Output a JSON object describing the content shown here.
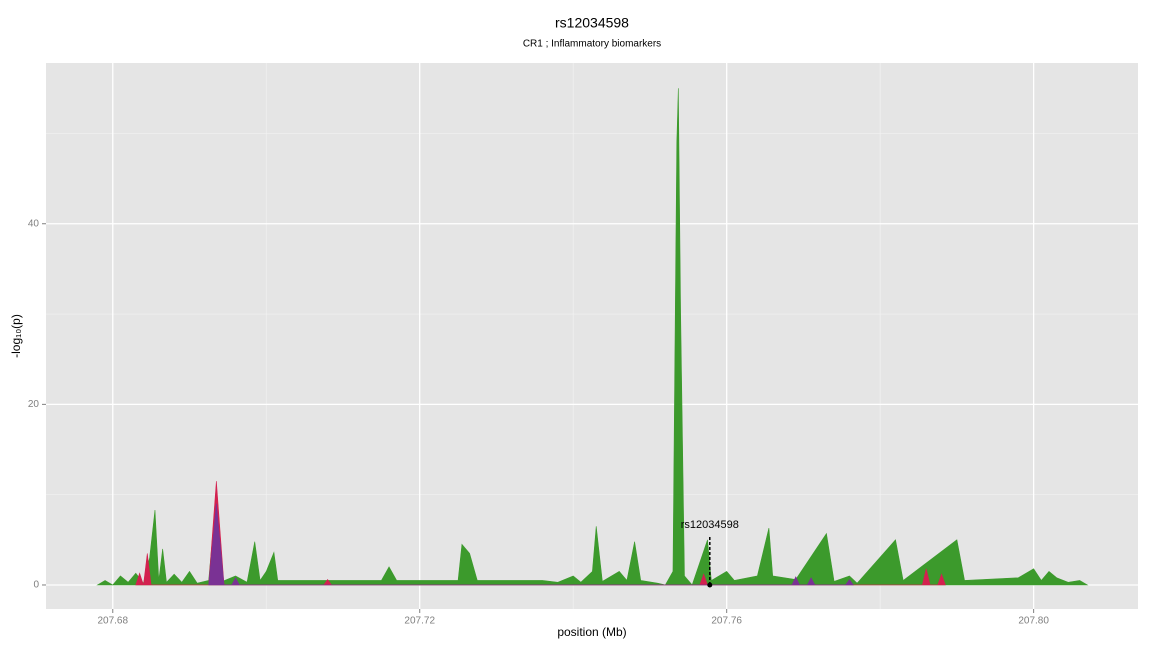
{
  "chart_data": {
    "type": "area",
    "title": "rs12034598",
    "subtitle": "CR1 ; Inflammatory biomarkers",
    "xlabel": "position (Mb)",
    "ylabel": "-log₁₀(p)",
    "xlim": [
      207.6713,
      207.8136
    ],
    "ylim": [
      -2.66,
      57.8
    ],
    "xticks": [
      207.68,
      207.72,
      207.76,
      {
        "value": 207.8,
        "label": "207.80"
      }
    ],
    "yticks": [
      0,
      20,
      40
    ],
    "x_minor_ticks": [
      207.7,
      207.74,
      207.78
    ],
    "y_minor_ticks": [
      10,
      30,
      50
    ],
    "grid": true,
    "series": [
      {
        "name": "green",
        "color": "#3c9a2c",
        "x": [
          207.678,
          207.679,
          207.68,
          207.681,
          207.682,
          207.683,
          207.684,
          207.6848,
          207.6855,
          207.686,
          207.6865,
          207.687,
          207.688,
          207.689,
          207.69,
          207.691,
          207.6925,
          207.6935,
          207.694,
          207.696,
          207.6975,
          207.6985,
          207.6992,
          207.7,
          207.701,
          207.7015,
          207.708,
          207.715,
          207.716,
          207.717,
          207.725,
          207.7255,
          207.7265,
          207.7275,
          207.73,
          207.736,
          207.738,
          207.74,
          207.741,
          207.7425,
          207.743,
          207.7438,
          207.746,
          207.747,
          207.748,
          207.7488,
          207.751,
          207.752,
          207.753,
          207.7535,
          207.7537,
          207.754,
          207.7545,
          207.7555,
          207.7575,
          207.758,
          207.76,
          207.761,
          207.764,
          207.7655,
          207.766,
          207.769,
          207.773,
          207.774,
          207.776,
          207.777,
          207.782,
          207.783,
          207.79,
          207.791,
          207.798,
          207.8,
          207.801,
          207.802,
          207.803,
          207.8045,
          207.806,
          207.807
        ],
        "values": [
          0,
          0.5,
          0,
          1.0,
          0.3,
          1.3,
          0.2,
          3,
          8.3,
          0.5,
          4,
          0.3,
          1.2,
          0.3,
          1.5,
          0.2,
          0.5,
          10,
          0.3,
          1,
          0.3,
          4.8,
          0.5,
          1.5,
          3.6,
          0.5,
          0.5,
          0.5,
          2,
          0.5,
          0.5,
          4.5,
          3.5,
          0.5,
          0.5,
          0.5,
          0.3,
          1,
          0.3,
          1.5,
          6.5,
          0.4,
          1.5,
          0.5,
          4.8,
          0.5,
          0.2,
          0,
          1.5,
          49,
          55,
          30,
          1,
          0,
          5,
          0.5,
          1.5,
          0.5,
          1,
          6.3,
          1,
          0.6,
          5.7,
          0.4,
          1,
          0.2,
          5,
          0.5,
          5,
          0.5,
          0.8,
          1.8,
          0.5,
          1.5,
          0.8,
          0.3,
          0.5,
          0
        ]
      },
      {
        "name": "red",
        "color": "#d3214f",
        "x": [
          207.683,
          207.6835,
          207.684,
          207.6845,
          207.685,
          207.6925,
          207.6935,
          207.6945,
          207.7075,
          207.708,
          207.7085,
          207.7565,
          207.757,
          207.7575,
          207.7855,
          207.786,
          207.7865,
          207.7875,
          207.788,
          207.7885
        ],
        "values": [
          0,
          1.3,
          0,
          3.5,
          0,
          0,
          11.5,
          0,
          0,
          0.6,
          0,
          0,
          1.2,
          0,
          0,
          1.8,
          0,
          0,
          1.2,
          0
        ]
      },
      {
        "name": "purple",
        "color": "#7a3294",
        "x": [
          207.6925,
          207.6935,
          207.6945,
          207.6955,
          207.696,
          207.6965,
          207.7685,
          207.769,
          207.7695,
          207.7705,
          207.771,
          207.7715,
          207.7755,
          207.776,
          207.7765
        ],
        "values": [
          0,
          9,
          0,
          0,
          0.8,
          0,
          0,
          0.9,
          0,
          0,
          0.8,
          0,
          0,
          0.6,
          0
        ]
      }
    ],
    "annotation": {
      "label": "rs12034598",
      "x": 207.7578,
      "y_top": 5.5,
      "y_point": 0
    }
  }
}
